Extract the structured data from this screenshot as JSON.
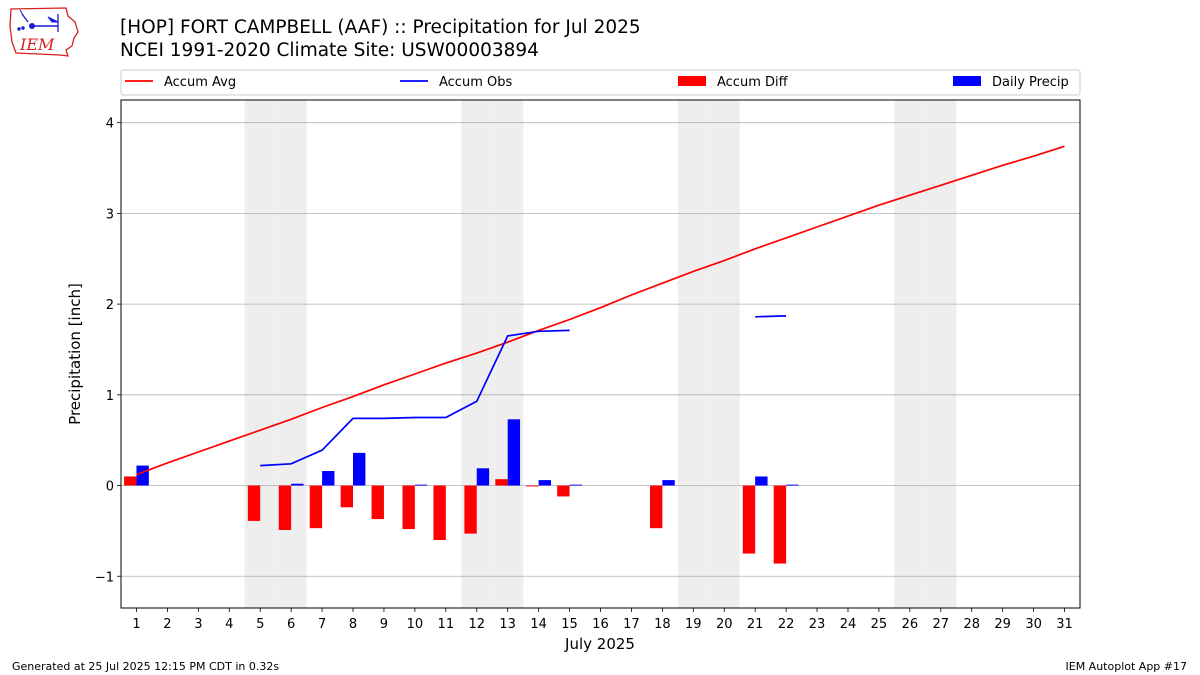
{
  "logo": {
    "text": "IEM",
    "color": "#d62020"
  },
  "header": {
    "title": "[HOP] FORT CAMPBELL (AAF) :: Precipitation for Jul 2025",
    "subtitle": "NCEI 1991-2020 Climate Site: USW00003894"
  },
  "footer": {
    "left": "Generated at 25 Jul 2025 12:15 PM CDT in 0.32s",
    "right": "IEM Autoplot App #17"
  },
  "chart_data": {
    "type": "bar",
    "xlabel": "July 2025",
    "ylabel": "Precipitation [inch]",
    "xlim": [
      0.5,
      31.5
    ],
    "ylim": [
      -1.35,
      4.25
    ],
    "yticks": [
      -1,
      0,
      1,
      2,
      3,
      4
    ],
    "ytick_labels": [
      "−1",
      "0",
      "1",
      "2",
      "3",
      "4"
    ],
    "days": [
      1,
      2,
      3,
      4,
      5,
      6,
      7,
      8,
      9,
      10,
      11,
      12,
      13,
      14,
      15,
      16,
      17,
      18,
      19,
      20,
      21,
      22,
      23,
      24,
      25,
      26,
      27,
      28,
      29,
      30,
      31
    ],
    "weekend_days": [
      5,
      6,
      12,
      13,
      19,
      20,
      26,
      27
    ],
    "grid": "horizontal",
    "legend_position": "top",
    "series": [
      {
        "name": "Accum Avg",
        "kind": "line",
        "color": "#ff0000",
        "values": [
          0.12,
          0.25,
          0.37,
          0.49,
          0.61,
          0.73,
          0.86,
          0.98,
          1.11,
          1.23,
          1.35,
          1.46,
          1.58,
          1.71,
          1.83,
          1.96,
          2.1,
          2.23,
          2.36,
          2.48,
          2.61,
          2.73,
          2.85,
          2.97,
          3.09,
          3.2,
          3.31,
          3.42,
          3.53,
          3.63,
          3.74
        ]
      },
      {
        "name": "Accum Obs",
        "kind": "line",
        "color": "#0000ff",
        "values": [
          null,
          null,
          null,
          null,
          0.22,
          0.24,
          0.39,
          0.74,
          0.74,
          0.75,
          0.75,
          0.93,
          1.65,
          1.7,
          1.71,
          null,
          null,
          null,
          null,
          null,
          1.86,
          1.87,
          null,
          null,
          null,
          null,
          null,
          null,
          null,
          null,
          null
        ]
      },
      {
        "name": "Accum Diff",
        "kind": "bar",
        "color": "#ff0000",
        "values": [
          0.1,
          null,
          null,
          null,
          -0.39,
          -0.49,
          -0.47,
          -0.24,
          -0.37,
          -0.48,
          -0.6,
          -0.53,
          0.07,
          -0.01,
          -0.12,
          null,
          null,
          -0.47,
          null,
          null,
          -0.75,
          -0.86,
          null,
          null,
          null,
          null,
          null,
          null,
          null,
          null,
          null
        ]
      },
      {
        "name": "Daily Precip",
        "kind": "bar",
        "color": "#0000ff",
        "values": [
          0.22,
          null,
          null,
          null,
          null,
          0.02,
          0.16,
          0.36,
          null,
          0.01,
          null,
          0.19,
          0.73,
          0.06,
          0.01,
          null,
          null,
          0.06,
          null,
          null,
          0.1,
          0.01,
          null,
          null,
          null,
          null,
          null,
          null,
          null,
          null,
          null
        ]
      }
    ]
  }
}
